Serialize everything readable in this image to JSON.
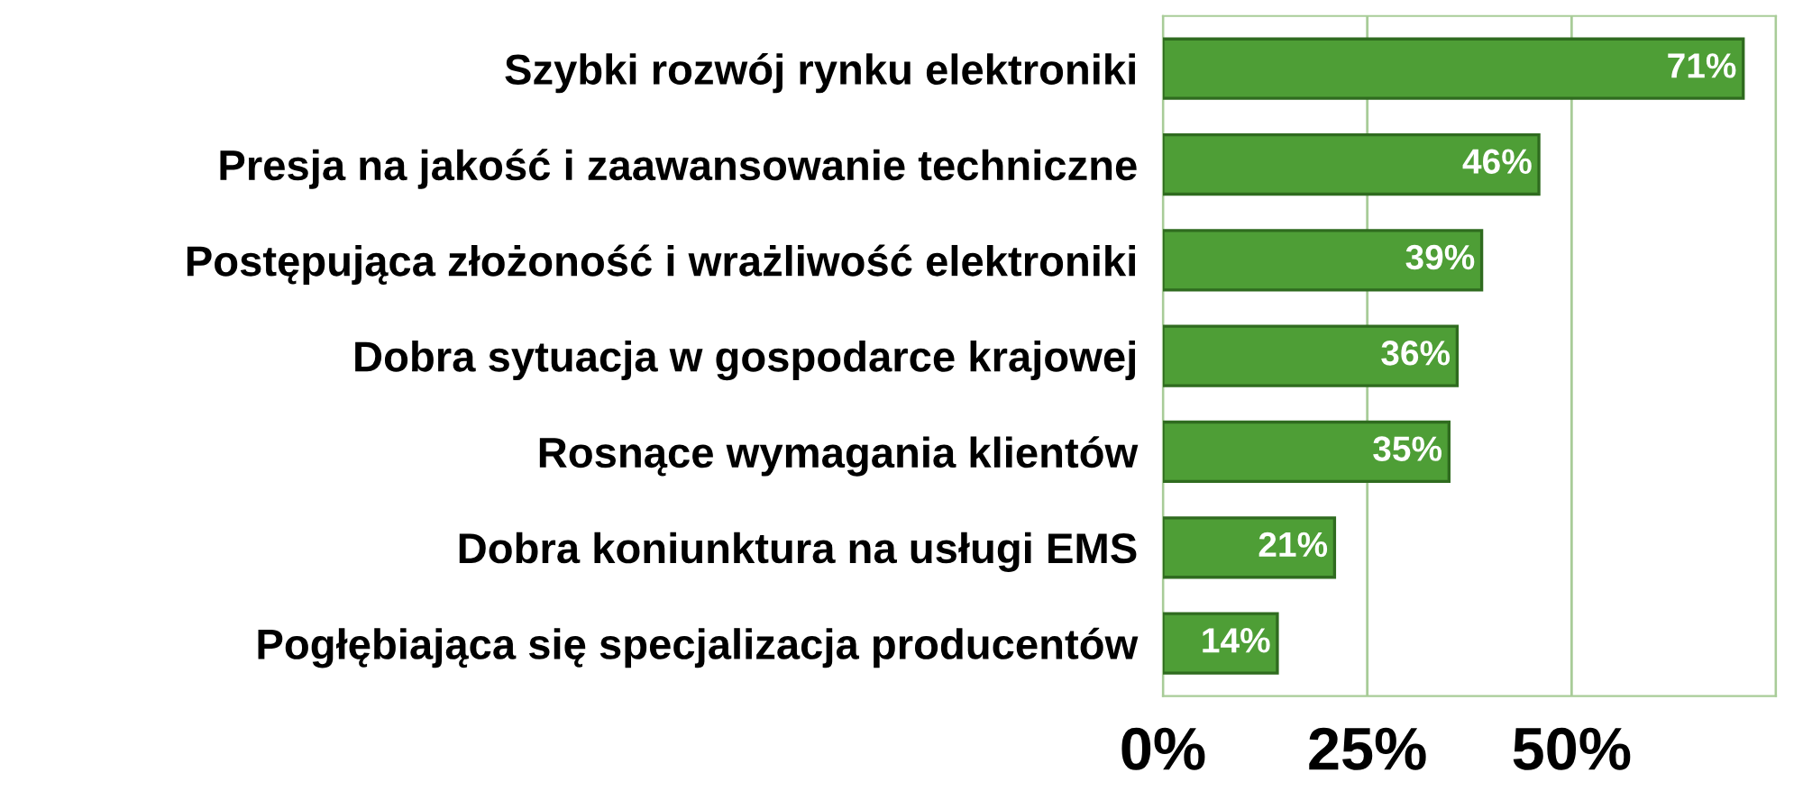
{
  "chart_data": {
    "type": "bar",
    "orientation": "horizontal",
    "categories": [
      "Szybki rozwój rynku elektroniki",
      "Presja na jakość i zaawansowanie techniczne",
      "Postępująca złożoność i wrażliwość elektroniki",
      "Dobra sytuacja w gospodarce krajowej",
      "Rosnące wymagania klientów",
      "Dobra koniunktura na usługi EMS",
      "Pogłębiająca się specjalizacja producentów"
    ],
    "values": [
      71,
      46,
      39,
      36,
      35,
      21,
      14
    ],
    "value_labels": [
      "71%",
      "46%",
      "39%",
      "36%",
      "35%",
      "21%",
      "14%"
    ],
    "color": "#4e9e36",
    "xlim": [
      0,
      75
    ],
    "xticks": [
      {
        "value": 0,
        "label": "0%"
      },
      {
        "value": 25,
        "label": "25%"
      },
      {
        "value": 50,
        "label": "50%"
      },
      {
        "value": 75,
        "label": null
      }
    ],
    "grid": "x"
  }
}
